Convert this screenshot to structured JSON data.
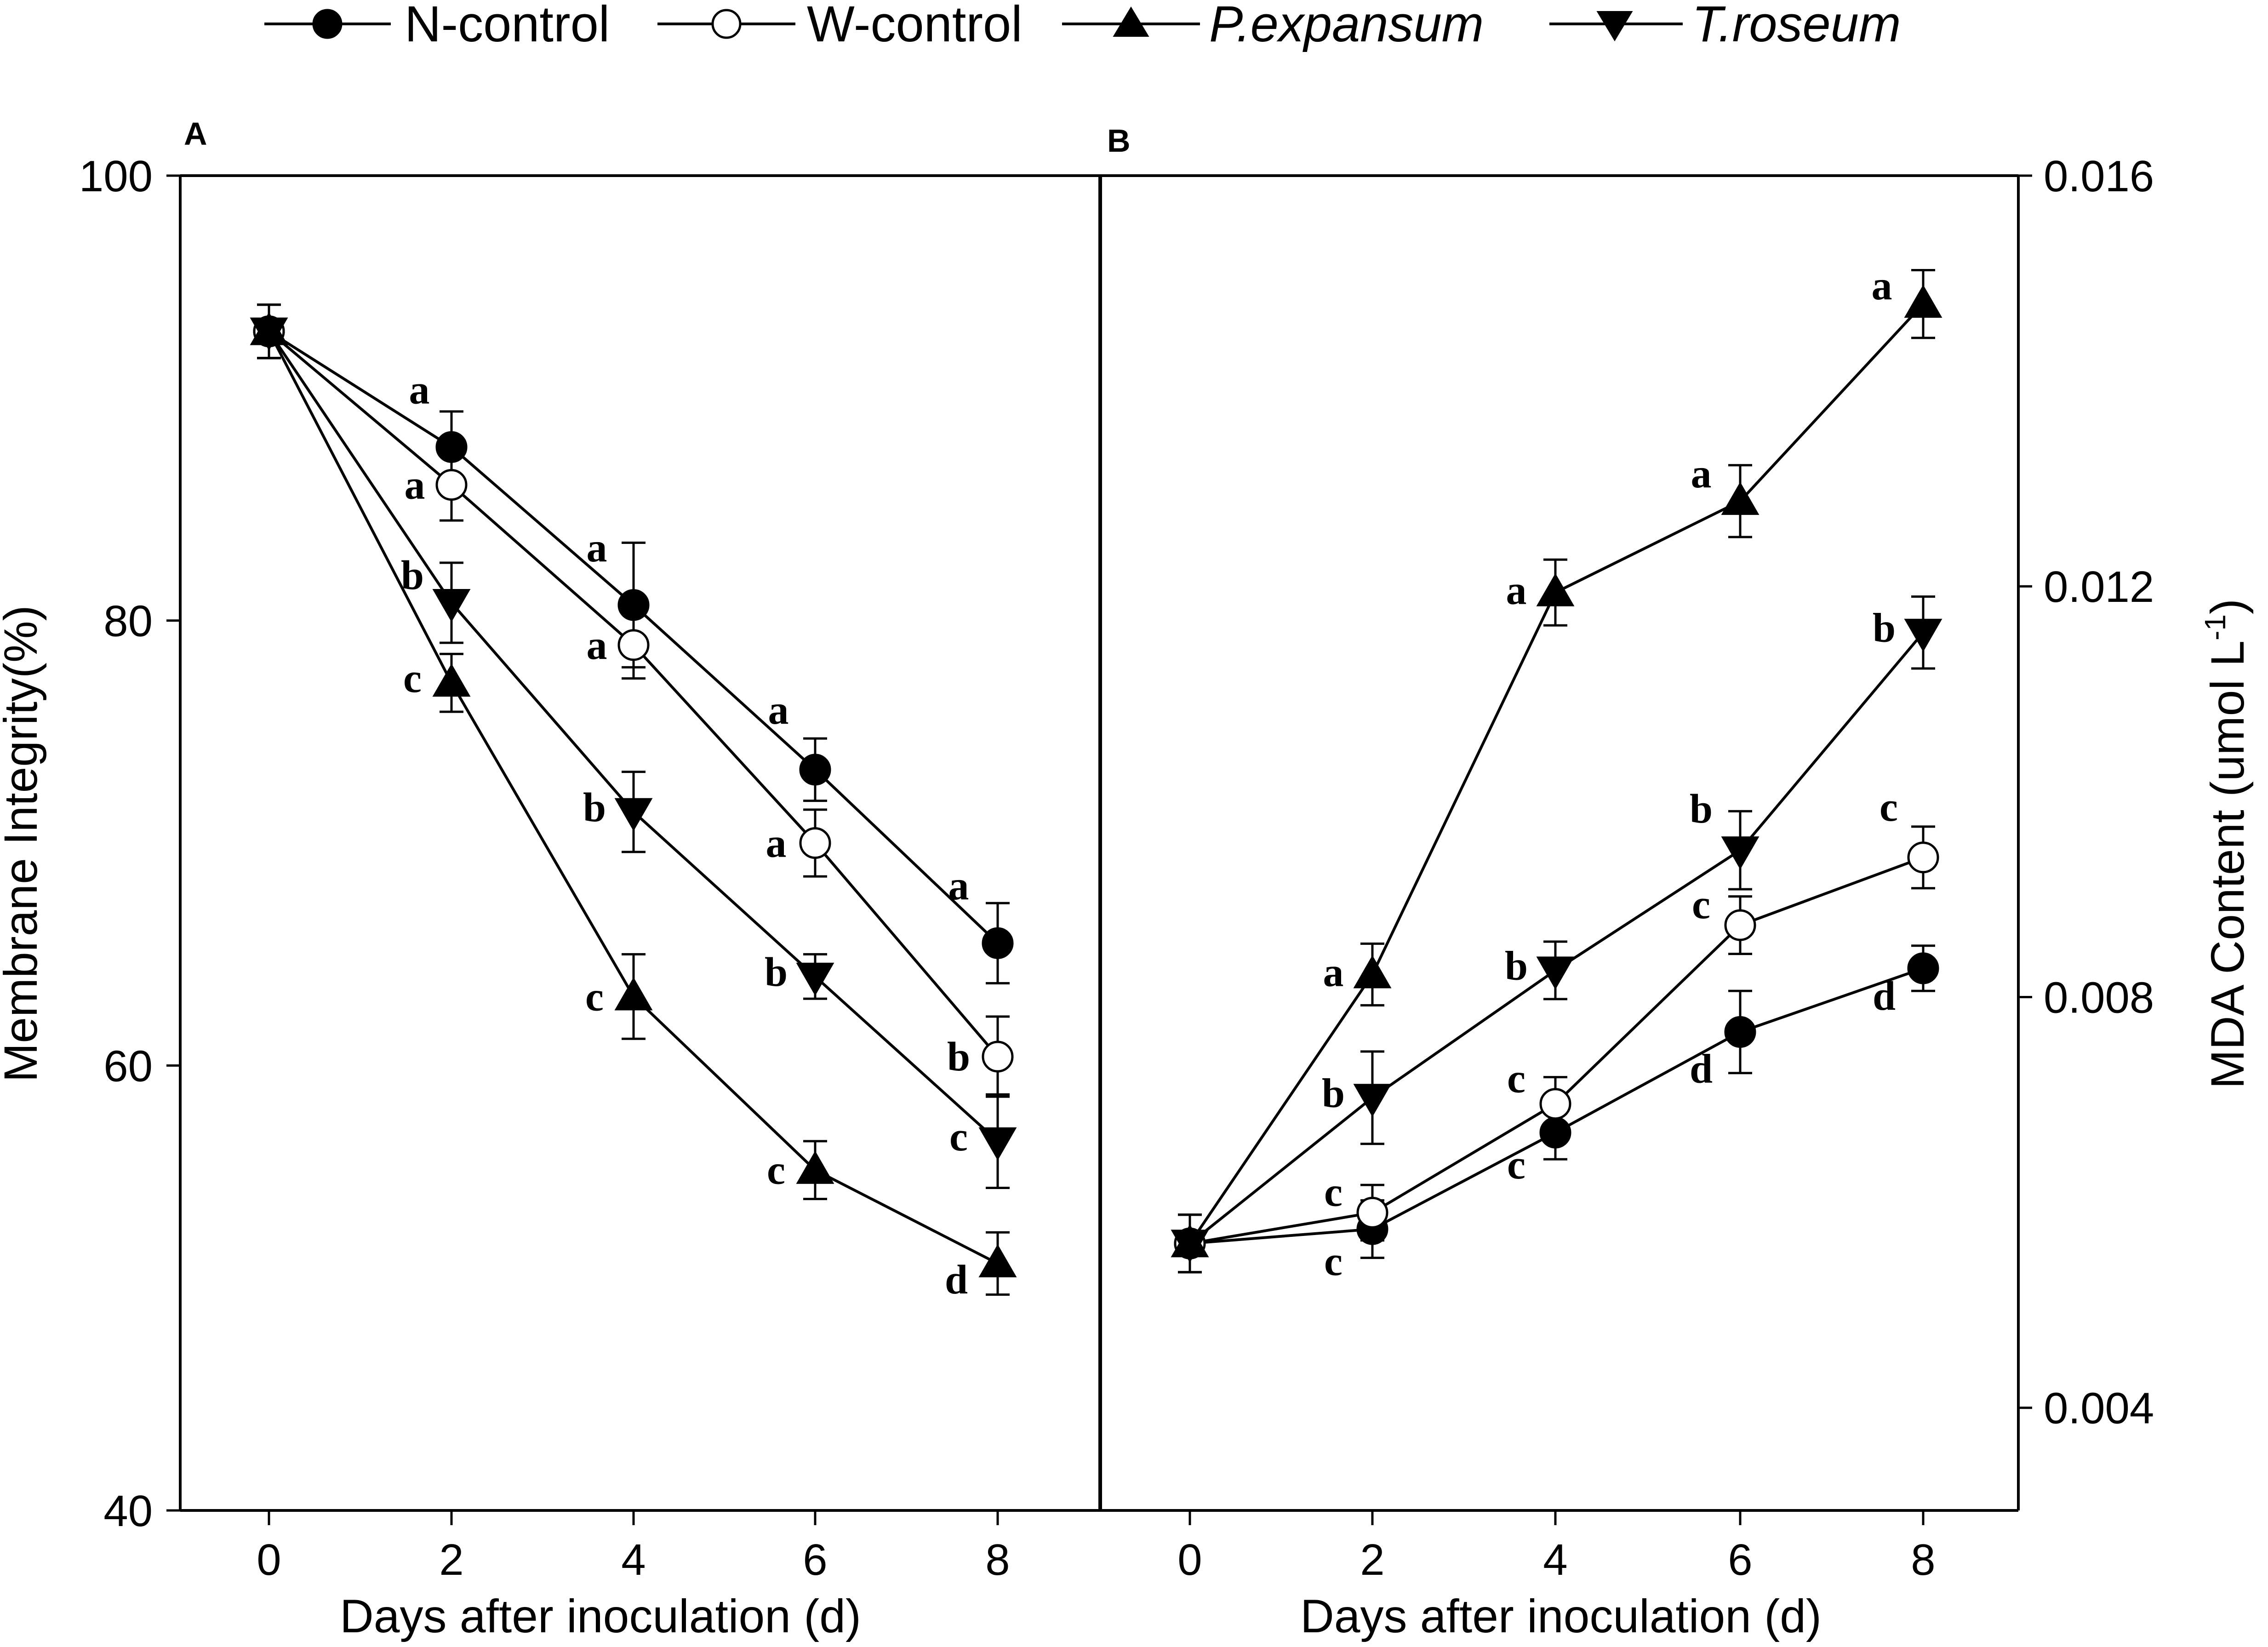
{
  "legend": {
    "items": [
      {
        "label": "N-control",
        "marker": "filled-circle",
        "italic": false
      },
      {
        "label": "W-control",
        "marker": "open-circle",
        "italic": false
      },
      {
        "label": "P.expansum",
        "marker": "filled-triangle-up",
        "italic": true
      },
      {
        "label": "T.roseum",
        "marker": "filled-triangle-down",
        "italic": true
      }
    ]
  },
  "colors": {
    "ink": "#000000",
    "background": "#ffffff",
    "open_marker_fill": "#ffffff"
  },
  "chart_data": [
    {
      "panel": "A",
      "type": "line",
      "ylabel": "Membrane Integrity(%)",
      "xlabel": "Days after inoculation (d)",
      "x": [
        0,
        2,
        4,
        6,
        8
      ],
      "x_ticks": [
        "0",
        "2",
        "4",
        "6",
        "8"
      ],
      "ylim": [
        40,
        100
      ],
      "y_ticks": [
        "40",
        "60",
        "80",
        "100"
      ],
      "y_tick_values": [
        40,
        60,
        80,
        100
      ],
      "series": [
        {
          "name": "N-control",
          "values": [
            93,
            87.8,
            80.7,
            73.3,
            65.5
          ],
          "errors": [
            1.2,
            1.6,
            2.8,
            1.4,
            1.8
          ],
          "letters": [
            "",
            "a",
            "a",
            "a",
            "a"
          ]
        },
        {
          "name": "W-control",
          "values": [
            93,
            86.1,
            78.9,
            70.0,
            60.4
          ],
          "errors": [
            1.2,
            1.6,
            1.5,
            1.5,
            1.8
          ],
          "letters": [
            "",
            "a",
            "a",
            "a",
            "b"
          ]
        },
        {
          "name": "P.expansum",
          "values": [
            93,
            77.2,
            63.1,
            55.3,
            51.1
          ],
          "errors": [
            1.2,
            1.3,
            1.9,
            1.3,
            1.4
          ],
          "letters": [
            "",
            "c",
            "c",
            "c",
            "d"
          ]
        },
        {
          "name": "T.roseum",
          "values": [
            93,
            80.8,
            71.4,
            64.0,
            56.6
          ],
          "errors": [
            1.2,
            1.8,
            1.8,
            1.0,
            2.1
          ],
          "letters": [
            "",
            "b",
            "b",
            "b",
            "c"
          ]
        }
      ]
    },
    {
      "panel": "B",
      "type": "line",
      "ylabel": "MDA Content (umol L",
      "ylabel_sup": "-1",
      "ylabel_end": ")",
      "xlabel": "Days after inoculation (d)",
      "x": [
        0,
        2,
        4,
        6,
        8
      ],
      "x_ticks": [
        "0",
        "2",
        "4",
        "6",
        "8"
      ],
      "ylim": [
        0.003,
        0.016
      ],
      "y_ticks": [
        "0.004",
        "0.008",
        "0.012",
        "0.016"
      ],
      "y_tick_values": [
        0.004,
        0.008,
        0.012,
        0.016
      ],
      "series": [
        {
          "name": "N-control",
          "values": [
            0.0056,
            0.00574,
            0.00668,
            0.00766,
            0.00828
          ],
          "errors": [
            0.00028,
            0.00028,
            0.00026,
            0.0004,
            0.00022
          ],
          "letters": [
            "",
            "c",
            "c",
            "d",
            "d"
          ]
        },
        {
          "name": "W-control",
          "values": [
            0.0056,
            0.0059,
            0.00696,
            0.0087,
            0.00936
          ],
          "errors": [
            0.00028,
            0.00027,
            0.00026,
            0.00028,
            0.0003
          ],
          "letters": [
            "",
            "c",
            "c",
            "c",
            "c"
          ]
        },
        {
          "name": "P.expansum",
          "values": [
            0.0056,
            0.00822,
            0.01194,
            0.01283,
            0.01475
          ],
          "errors": [
            0.00028,
            0.0003,
            0.00032,
            0.00035,
            0.00033
          ],
          "letters": [
            "",
            "a",
            "a",
            "a",
            "a"
          ]
        },
        {
          "name": "T.roseum",
          "values": [
            0.0056,
            0.00702,
            0.00826,
            0.00943,
            0.01155
          ],
          "errors": [
            0.00028,
            0.00045,
            0.00028,
            0.00038,
            0.00035
          ],
          "letters": [
            "",
            "b",
            "b",
            "b",
            "b"
          ]
        }
      ]
    }
  ]
}
